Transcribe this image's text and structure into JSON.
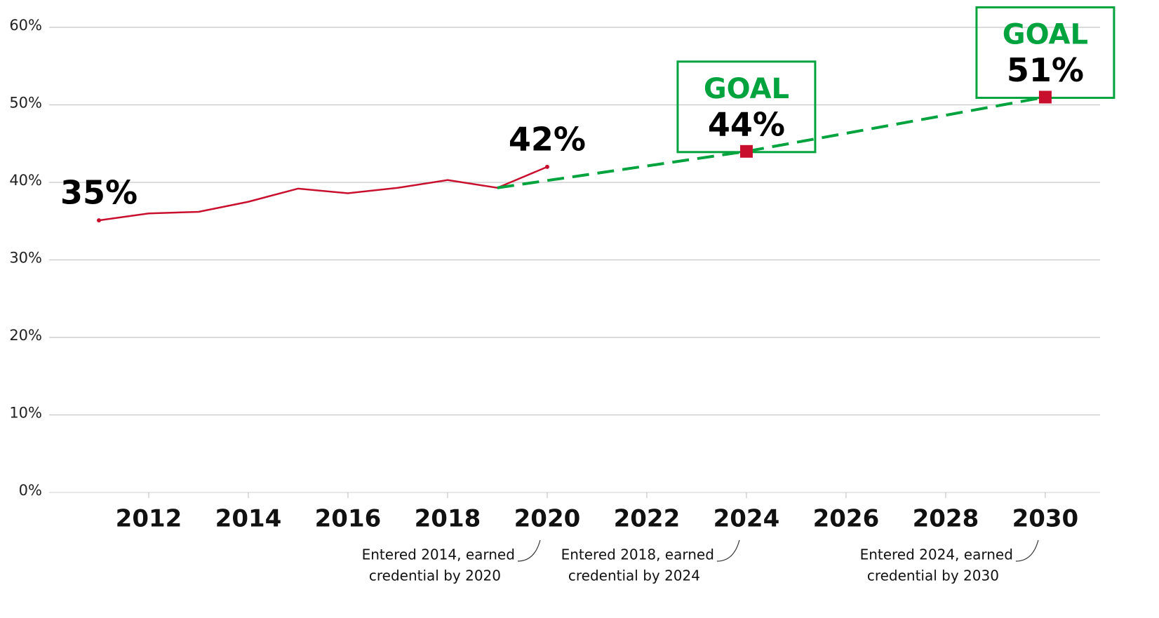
{
  "chart_data": {
    "type": "line",
    "xlim": [
      2010,
      2031.1
    ],
    "xticks": [
      2012,
      2014,
      2016,
      2018,
      2020,
      2022,
      2024,
      2026,
      2028,
      2030
    ],
    "ylim": [
      0,
      60
    ],
    "yticks": [
      {
        "value": 0,
        "label": "0%"
      },
      {
        "value": 10,
        "label": "10%"
      },
      {
        "value": 20,
        "label": "20%"
      },
      {
        "value": 30,
        "label": "30%"
      },
      {
        "value": 40,
        "label": "40%"
      },
      {
        "value": 50,
        "label": "50%"
      },
      {
        "value": 60,
        "label": "60%"
      }
    ],
    "grid": true,
    "series": [
      {
        "x": [
          2011,
          2012,
          2013,
          2014,
          2015,
          2016,
          2017,
          2018,
          2019,
          2020
        ],
        "values": [
          35.1,
          36.0,
          36.2,
          37.5,
          39.2,
          38.6,
          39.3,
          40.3,
          39.3,
          42.0
        ],
        "value_labels": [
          "35%",
          null,
          null,
          null,
          null,
          null,
          null,
          null,
          null,
          "42%"
        ],
        "color": "#c8102e"
      },
      {
        "x": [
          2019,
          2024,
          2030
        ],
        "values": [
          39.3,
          44,
          51
        ],
        "value_labels": [
          null,
          "44%",
          "51%"
        ],
        "box_labels": [
          null,
          "GOAL",
          "GOAL"
        ],
        "color": "#00a33d",
        "marker_color": "#c8102e",
        "dashed": true
      }
    ],
    "annotations": [
      {
        "x": 2020,
        "lines": [
          "Entered 2014, earned",
          "credential by 2020"
        ]
      },
      {
        "x": 2024,
        "lines": [
          "Entered 2018, earned",
          "credential by 2024"
        ]
      },
      {
        "x": 2030,
        "lines": [
          "Entered 2024, earned",
          "credential by 2030"
        ]
      }
    ]
  }
}
